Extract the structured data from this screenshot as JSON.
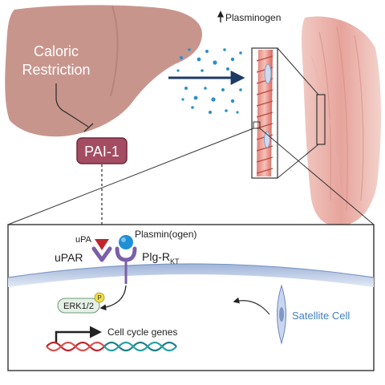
{
  "figure": {
    "liver_label_line1": "Caloric",
    "liver_label_line2": "Restriction",
    "pai1_label": "PAI-1",
    "plasminogen_label": "Plasminogen",
    "upa_label": "uPA",
    "upar_label": "uPAR",
    "plasminogen_inset_label": "Plasmin(ogen)",
    "plg_r_label": "Plg-R",
    "plg_r_subscript": "KT",
    "erk_label": "ERK1/2",
    "phospho_label": "P",
    "cell_cycle_label": "Cell cycle genes",
    "satellite_label": "Satellite Cell"
  },
  "colors": {
    "liver": "#c8958d",
    "pai1": "#a44c62",
    "dot_blue": "#2b8fc8",
    "satellite_text": "#3f7fbf",
    "upa": "#c0262c",
    "receptor": "#7b5fa8",
    "plasminogen_ball": "#1f8fd6",
    "dna_red": "#c0262c",
    "dna_teal": "#1e7f86"
  }
}
